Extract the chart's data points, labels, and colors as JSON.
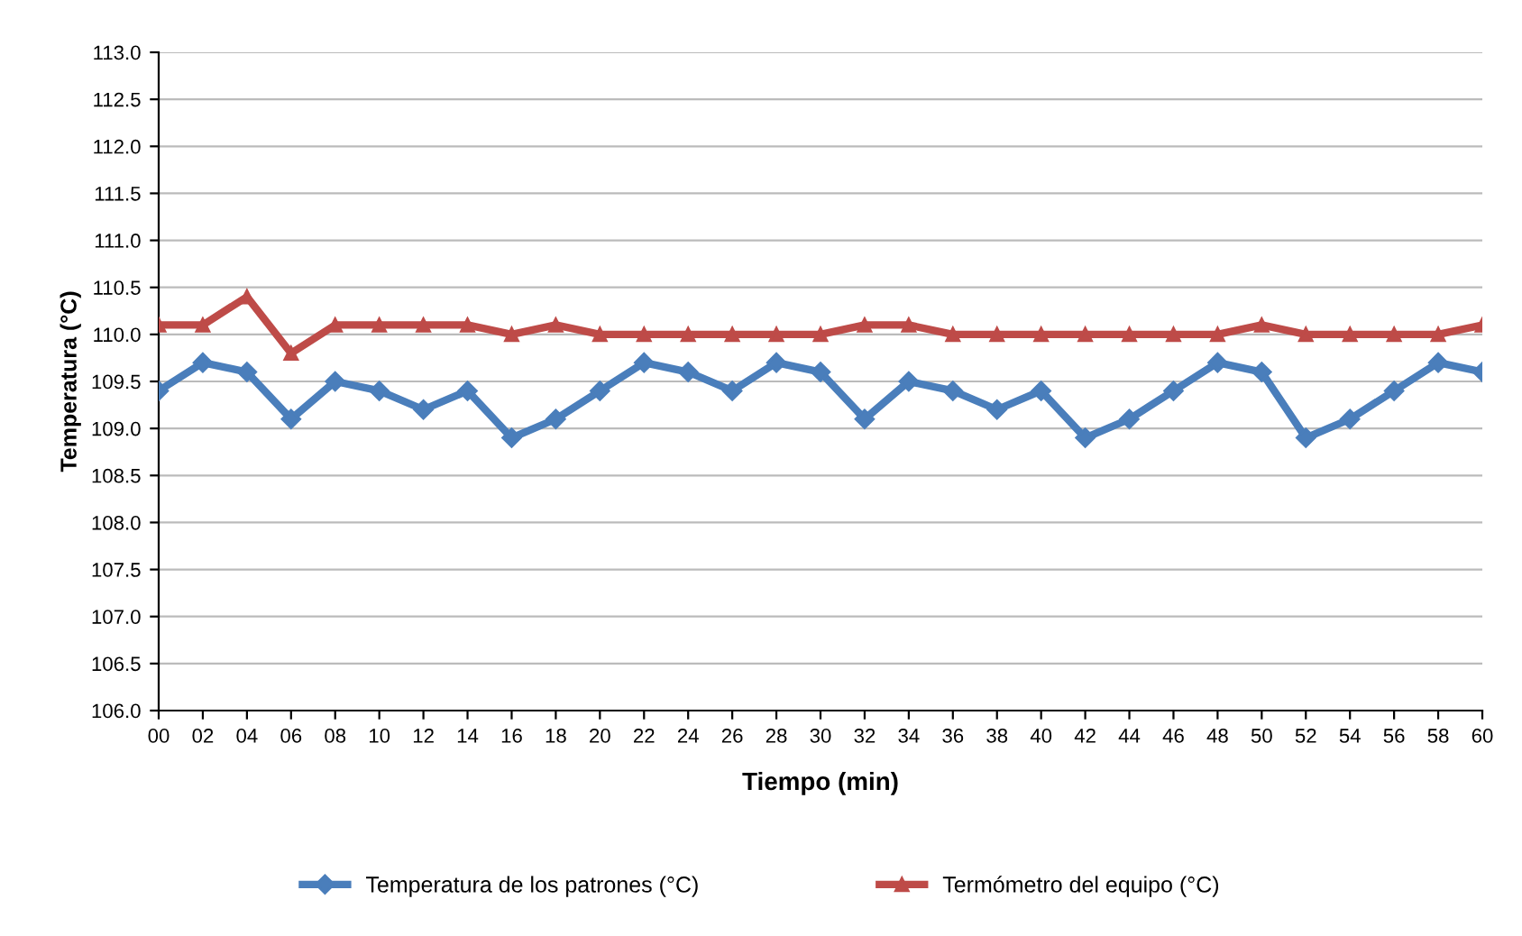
{
  "chart_data": {
    "type": "line",
    "xlabel": "Tiempo (min)",
    "ylabel": "Temperatura (°C)",
    "categories": [
      "00",
      "02",
      "04",
      "06",
      "08",
      "10",
      "12",
      "14",
      "16",
      "18",
      "20",
      "22",
      "24",
      "26",
      "28",
      "30",
      "32",
      "34",
      "36",
      "38",
      "40",
      "42",
      "44",
      "46",
      "48",
      "50",
      "52",
      "54",
      "56",
      "58",
      "60"
    ],
    "series": [
      {
        "name": "Temperatura de los patrones (°C)",
        "color": "#4a7ebb",
        "marker": "diamond",
        "values": [
          109.4,
          109.7,
          109.6,
          109.1,
          109.5,
          109.4,
          109.2,
          109.4,
          108.9,
          109.1,
          109.4,
          109.7,
          109.6,
          109.4,
          109.7,
          109.6,
          109.1,
          109.5,
          109.4,
          109.2,
          109.4,
          108.9,
          109.1,
          109.4,
          109.7,
          109.6,
          108.9,
          109.1,
          109.4,
          109.7,
          109.6
        ]
      },
      {
        "name": "Termómetro del equipo (°C)",
        "color": "#be4b48",
        "marker": "triangle",
        "values": [
          110.1,
          110.1,
          110.4,
          109.8,
          110.1,
          110.1,
          110.1,
          110.1,
          110.0,
          110.1,
          110.0,
          110.0,
          110.0,
          110.0,
          110.0,
          110.0,
          110.1,
          110.1,
          110.0,
          110.0,
          110.0,
          110.0,
          110.0,
          110.0,
          110.0,
          110.1,
          110.0,
          110.0,
          110.0,
          110.0,
          110.1
        ]
      }
    ],
    "ylim": [
      106.0,
      113.0
    ],
    "yticks": [
      {
        "value": 106,
        "label": "106.0"
      },
      {
        "value": 106.5,
        "label": "106.5"
      },
      {
        "value": 107,
        "label": "107.0"
      },
      {
        "value": 107.5,
        "label": "107.5"
      },
      {
        "value": 108,
        "label": "108.0"
      },
      {
        "value": 108.5,
        "label": "108.5"
      },
      {
        "value": 109,
        "label": "109.0"
      },
      {
        "value": 109.5,
        "label": "109.5"
      },
      {
        "value": 110,
        "label": "110.0"
      },
      {
        "value": 110.5,
        "label": "110.5"
      },
      {
        "value": 111,
        "label": "111.0"
      },
      {
        "value": 111.5,
        "label": "111.5"
      },
      {
        "value": 112,
        "label": "112.0"
      },
      {
        "value": 112.5,
        "label": "112.5"
      },
      {
        "value": 113,
        "label": "113.0"
      }
    ],
    "grid": "y",
    "legend": "bottom",
    "line_style": "solid"
  }
}
